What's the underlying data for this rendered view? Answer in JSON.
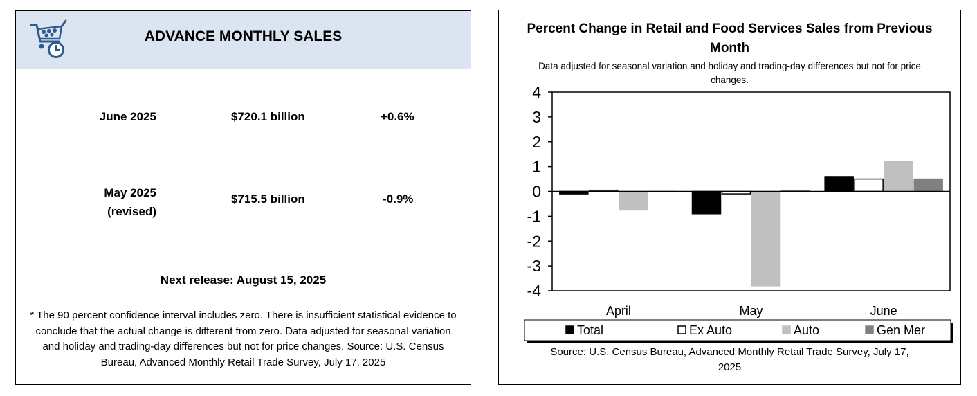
{
  "summary": {
    "title": "ADVANCE MONTHLY SALES",
    "rows": [
      {
        "label_line1": "June 2025",
        "label_line2": "",
        "value": "$720.1 billion",
        "change": "+0.6%"
      },
      {
        "label_line1": "May 2025",
        "label_line2": "(revised)",
        "value": "$715.5 billion",
        "change": "-0.9%"
      }
    ],
    "next_release": "Next release: August 15, 2025",
    "footnote": "* The 90 percent confidence interval includes zero. There is insufficient statistical evidence to conclude that the actual change is different from zero. Data adjusted for seasonal variation and holiday and trading-day differences but not for price changes. Source: U.S. Census Bureau, Advanced Monthly Retail Trade Survey, July 17, 2025",
    "icon": "shopping-cart-clock-icon"
  },
  "chart_data": {
    "type": "bar",
    "title": "Percent Change in Retail and Food Services Sales from Previous Month",
    "subtitle": "Data adjusted for seasonal variation and holiday and trading-day differences but not for price changes.",
    "categories": [
      "April",
      "May",
      "June"
    ],
    "series": [
      {
        "name": "Total",
        "values": [
          -0.1,
          -0.9,
          0.6
        ],
        "color": "#000000",
        "stroke": "#000000"
      },
      {
        "name": "Ex Auto",
        "values": [
          0.05,
          -0.1,
          0.5
        ],
        "color": "#ffffff",
        "stroke": "#000000"
      },
      {
        "name": "Auto",
        "values": [
          -0.75,
          -3.8,
          1.2
        ],
        "color": "#c0c0c0",
        "stroke": "#c0c0c0"
      },
      {
        "name": "Gen Mer",
        "values": [
          0.0,
          0.05,
          0.5
        ],
        "color": "#808080",
        "stroke": "#808080"
      }
    ],
    "ylim": [
      -4,
      4
    ],
    "yticks": [
      4,
      3,
      2,
      1,
      0,
      -1,
      -2,
      -3,
      -4
    ],
    "xlabel": "",
    "ylabel": "",
    "grid": false,
    "legend_position": "bottom",
    "source": "Source: U.S. Census Bureau, Advanced Monthly Retail Trade Survey, July 17, 2025"
  }
}
